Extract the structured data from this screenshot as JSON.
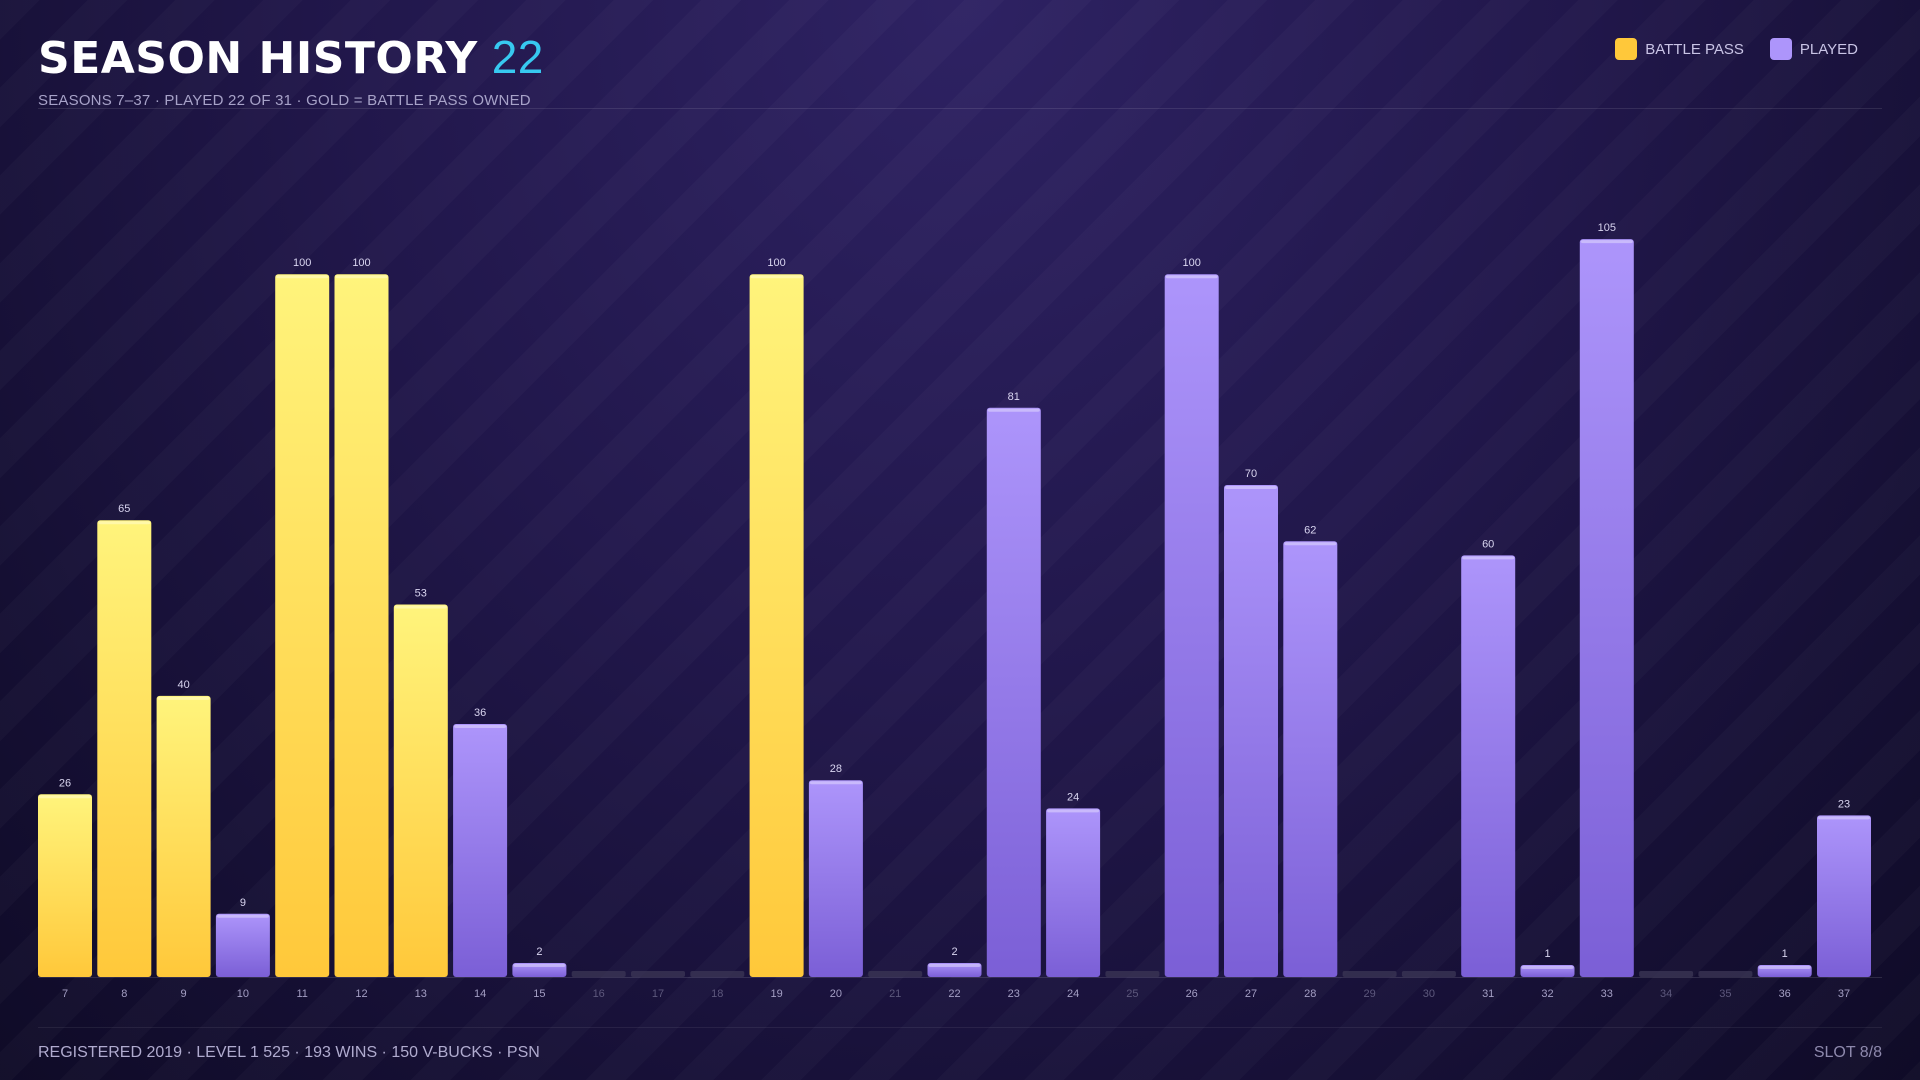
{
  "header": {
    "title": "SEASON HISTORY",
    "title_number": "22",
    "subtitle": "SEASONS 7–37  ·  PLAYED 22 OF 31  ·  GOLD = BATTLE PASS OWNED"
  },
  "legend": {
    "battle_pass_label": "BATTLE PASS",
    "played_label": "PLAYED"
  },
  "colors": {
    "battle_pass": "#ffc83a",
    "battle_pass_light": "#fff47c",
    "played": "#7b5fd6",
    "played_light": "#ad95fb",
    "empty": "#3a3554",
    "title_accent": "#37c9f0"
  },
  "footer": {
    "left": "REGISTERED 2019  ·  LEVEL 1 525  ·  193 WINS  ·  150 V-BUCKS  ·  PSN",
    "right": "SLOT 8/8"
  },
  "chart_data": {
    "type": "bar",
    "title": "SEASON HISTORY",
    "xlabel": "",
    "ylabel": "",
    "ylim": [
      0,
      108
    ],
    "grid": false,
    "legend_position": "top-right",
    "categories": [
      "7",
      "8",
      "9",
      "10",
      "11",
      "12",
      "13",
      "14",
      "15",
      "16",
      "17",
      "18",
      "19",
      "20",
      "21",
      "22",
      "23",
      "24",
      "25",
      "26",
      "27",
      "28",
      "29",
      "30",
      "31",
      "32",
      "33",
      "34",
      "35",
      "36",
      "37"
    ],
    "values": [
      26,
      65,
      40,
      9,
      100,
      100,
      53,
      36,
      2,
      0,
      0,
      0,
      100,
      28,
      0,
      2,
      81,
      24,
      0,
      100,
      70,
      62,
      0,
      0,
      60,
      1,
      105,
      0,
      0,
      1,
      23
    ],
    "battle_pass": [
      true,
      true,
      true,
      false,
      true,
      true,
      true,
      false,
      false,
      false,
      false,
      false,
      true,
      false,
      false,
      false,
      false,
      false,
      false,
      false,
      false,
      false,
      false,
      false,
      false,
      false,
      false,
      false,
      false,
      false,
      false
    ],
    "played": [
      true,
      true,
      true,
      true,
      true,
      true,
      true,
      true,
      true,
      false,
      false,
      false,
      true,
      true,
      false,
      true,
      true,
      true,
      false,
      true,
      true,
      true,
      false,
      false,
      true,
      true,
      true,
      false,
      false,
      true,
      true
    ]
  }
}
